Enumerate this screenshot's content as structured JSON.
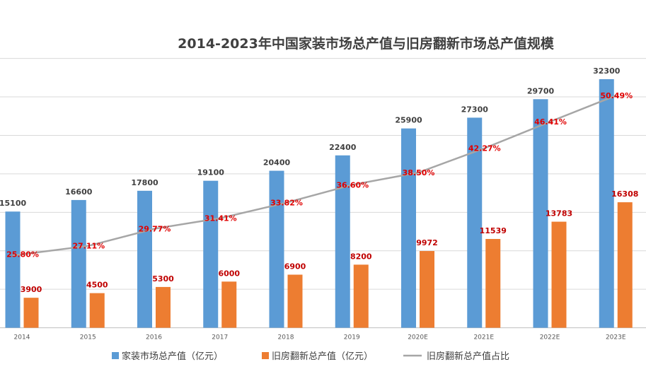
{
  "chart_data": {
    "type": "bar",
    "title": "2014-2023年中国家装市场总产值与旧房翻新市场总产值规模",
    "categories": [
      "2014",
      "2015",
      "2016",
      "2017",
      "2018",
      "2019",
      "2020E",
      "2021E",
      "2022E",
      "2023E"
    ],
    "series": [
      {
        "name": "家装市场总产值（亿元）",
        "type": "bar",
        "color": "#5b9bd5",
        "values": [
          15100,
          16600,
          17800,
          19100,
          20400,
          22400,
          25900,
          27300,
          29700,
          32300
        ],
        "labels": [
          "15100",
          "16600",
          "17800",
          "19100",
          "20400",
          "22400",
          "25900",
          "27300",
          "29700",
          "32300"
        ]
      },
      {
        "name": "旧房翻新总产值（亿元）",
        "type": "bar",
        "color": "#ed7d31",
        "values": [
          3900,
          4500,
          5300,
          6000,
          6900,
          8200,
          9972,
          11539,
          13783,
          16308
        ],
        "labels": [
          "3900",
          "4500",
          "5300",
          "6000",
          "6900",
          "8200",
          "9972",
          "11539",
          "13783",
          "16308"
        ]
      },
      {
        "name": "旧房翻新总产值占比",
        "type": "line",
        "color": "#a6a6a6",
        "values": [
          25.8,
          27.11,
          29.77,
          31.41,
          33.82,
          36.6,
          38.5,
          42.27,
          46.41,
          50.49
        ],
        "labels": [
          "25.80%",
          "27.11%",
          "29.77%",
          "31.41%",
          "33.82%",
          "36.60%",
          "38.50%",
          "42.27%",
          "46.41%",
          "50.49%"
        ]
      }
    ],
    "ylim": [
      0,
      35000
    ],
    "y2lim": [
      0,
      60
    ],
    "grid": true,
    "legend_position": "bottom"
  }
}
